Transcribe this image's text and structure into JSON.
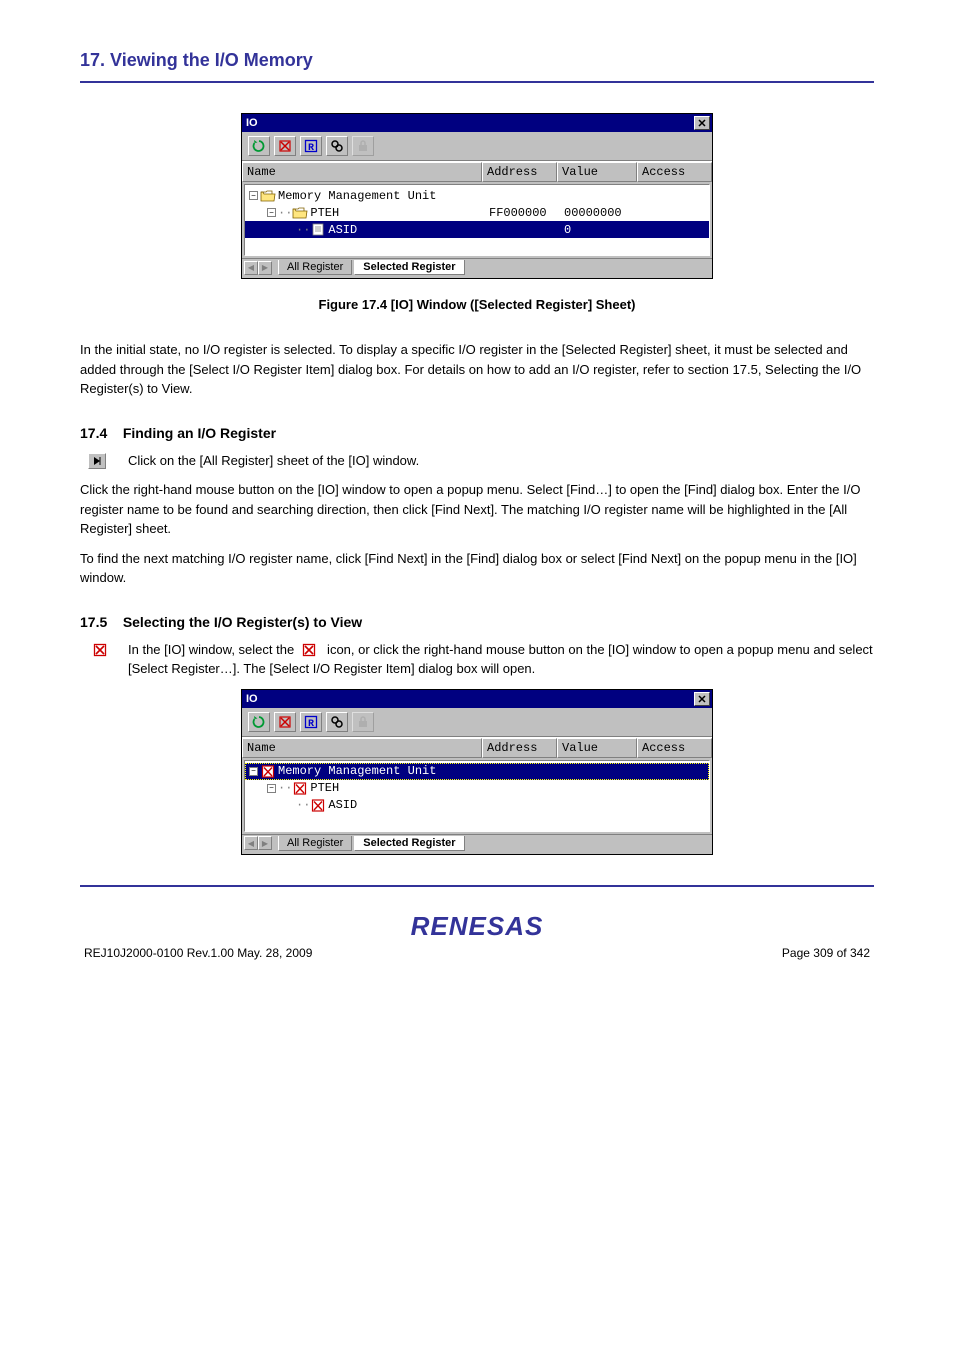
{
  "section_title": "17. Viewing the I/O Memory",
  "window1": {
    "title": "IO",
    "columns": {
      "name": "Name",
      "address": "Address",
      "value": "Value",
      "access": "Access"
    },
    "rows": [
      {
        "indent": 0,
        "exp": "-",
        "icon": "folder-open",
        "label": "Memory Management Unit",
        "address": "",
        "value": "",
        "selected": false
      },
      {
        "indent": 1,
        "exp": "-",
        "icon": "folder-open",
        "label": "PTEH",
        "address": "FF000000",
        "value": "00000000",
        "selected": false
      },
      {
        "indent": 2,
        "exp": "",
        "icon": "doc",
        "label": "ASID",
        "address": "",
        "value": "0",
        "selected": true
      }
    ],
    "tabs": {
      "left": "All Register",
      "right": "Selected Register"
    }
  },
  "caption1": "Figure 17.4   [IO] Window ([Selected Register] Sheet)",
  "para1": "In the initial state, no I/O register is selected. To display a specific I/O register in the [Selected Register] sheet, it must be selected and added through the [Select I/O Register Item] dialog box. For details on how to add an I/O register, refer to section 17.5, Selecting the I/O Register(s) to View.",
  "sub1_num": "17.4",
  "sub1_title": "Finding an I/O Register",
  "sub1_paras": [
    "Click on the [All Register] sheet of the [IO] window.",
    "Click the right-hand mouse button on the [IO] window to open a popup menu. Select [Find…] to open the [Find] dialog box. Enter the I/O register name to be found and searching direction, then click [Find Next]. The matching I/O register name will be highlighted in the [All Register] sheet.",
    "To find the next matching I/O register name, click [Find Next] in the [Find] dialog box or select [Find Next] on the popup menu in the [IO] window."
  ],
  "play_icon_label": "▶",
  "sub2_num": "17.5",
  "sub2_title": "Selecting the I/O Register(s) to View",
  "sub2_para1_prefix": "In the [IO] window, select the ",
  "sub2_para1_mid": " icon, or click the right-hand mouse button on the [IO] window to open a popup menu and select [Select Register…]. The [Select I/O Register Item] dialog box will open.",
  "window2": {
    "title": "IO",
    "columns": {
      "name": "Name",
      "address": "Address",
      "value": "Value",
      "access": "Access"
    },
    "rows": [
      {
        "indent": 0,
        "exp": "-",
        "icon": "xbox",
        "label": "Memory Management Unit",
        "address": "",
        "value": "",
        "selected": true
      },
      {
        "indent": 1,
        "exp": "-",
        "icon": "xbox",
        "label": "PTEH",
        "address": "",
        "value": "",
        "selected": false
      },
      {
        "indent": 2,
        "exp": "",
        "icon": "xbox",
        "label": "ASID",
        "address": "",
        "value": "",
        "selected": false
      }
    ],
    "tabs": {
      "left": "All Register",
      "right": "Selected Register"
    }
  },
  "caption2": "",
  "logo": "RENESAS",
  "footer": {
    "left": "REJ10J2000-0100  Rev.1.00  May. 28, 2009",
    "right": "Page 309 of 342"
  },
  "icons": {
    "refresh_color": "#009933",
    "x_color": "#cc0000",
    "r_color": "#0000cc",
    "bin_color": "#663300",
    "lock_color": "#a0a0a0"
  }
}
